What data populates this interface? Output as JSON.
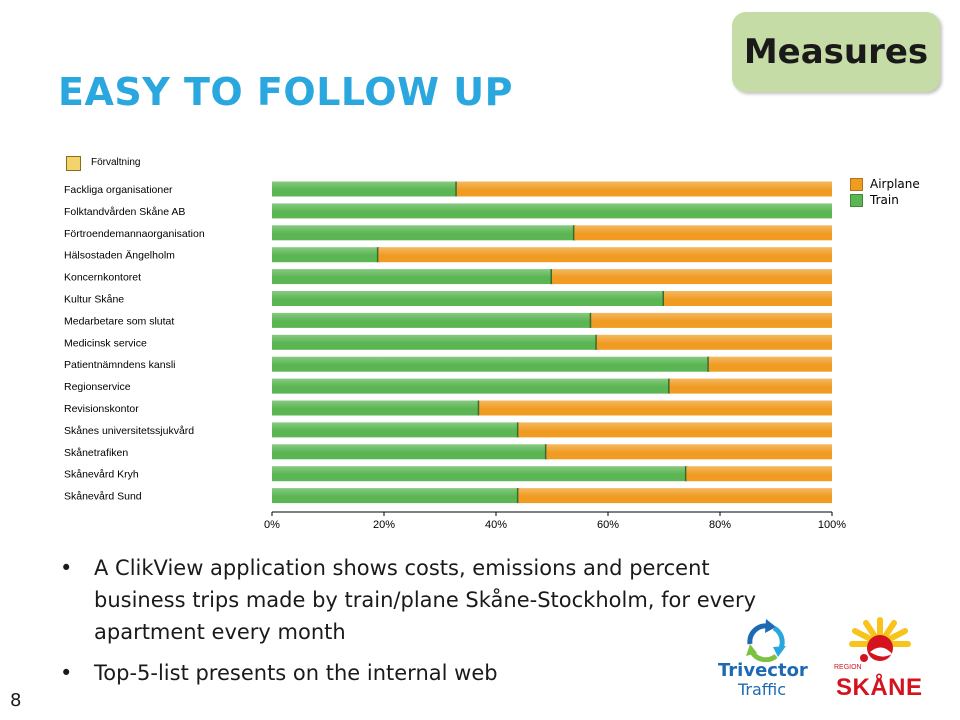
{
  "slide": {
    "title": "EASY TO FOLLOW UP",
    "badge": "Measures",
    "page_number": "8",
    "bullets": [
      "A ClikView application shows costs, emissions and percent business trips made by train/plane Skåne-Stockholm, for every apartment every month",
      "Top-5-list presents on the internal web"
    ],
    "dimension_label": "Förvaltning",
    "logos": {
      "trivector_line1": "Trivector",
      "trivector_line2": "Traffic",
      "region_small": "REGION",
      "region_name": "SKÅNE"
    }
  },
  "chart_data": {
    "type": "bar",
    "orientation": "horizontal",
    "stacked": "100%",
    "categories": [
      "Fackliga organisationer",
      "Folktandvården Skåne AB",
      "Förtroendemannaorganisation",
      "Hälsostaden Ängelholm",
      "Koncernkontoret",
      "Kultur Skåne",
      "Medarbetare som slutat",
      "Medicinsk service",
      "Patientnämndens kansli",
      "Regionservice",
      "Revisionskontor",
      "Skånes universitetssjukvård",
      "Skånetrafiken",
      "Skånevård Kryh",
      "Skånevård Sund"
    ],
    "series": [
      {
        "name": "Train",
        "color": "#5ab552",
        "values": [
          33,
          100,
          54,
          19,
          50,
          70,
          57,
          58,
          78,
          71,
          37,
          44,
          49,
          74,
          44
        ]
      },
      {
        "name": "Airplane",
        "color": "#f09c23",
        "values": [
          67,
          0,
          46,
          81,
          50,
          30,
          43,
          42,
          22,
          29,
          63,
          56,
          51,
          26,
          56
        ]
      }
    ],
    "xlim": [
      0,
      100
    ],
    "xticks": [
      "0%",
      "20%",
      "40%",
      "60%",
      "80%",
      "100%"
    ],
    "legend_position": "right",
    "grid": false
  }
}
